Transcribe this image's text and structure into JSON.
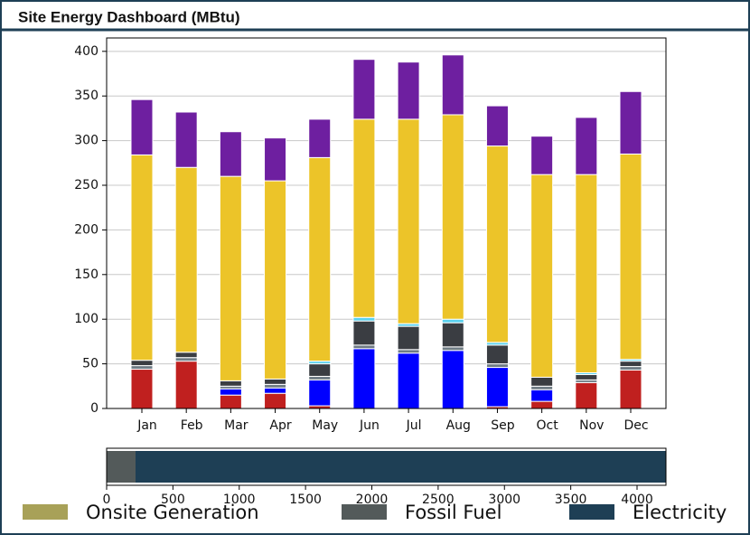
{
  "header": {
    "title": "Site Energy Dashboard (MBtu)"
  },
  "chart_data": [
    {
      "type": "bar",
      "stacked": true,
      "categories": [
        "Jan",
        "Feb",
        "Mar",
        "Apr",
        "May",
        "Jun",
        "Jul",
        "Aug",
        "Sep",
        "Oct",
        "Nov",
        "Dec"
      ],
      "series": [
        {
          "color": "#c0201f",
          "values": [
            44,
            53,
            15,
            17,
            3,
            0,
            0,
            0,
            2,
            8,
            29,
            43
          ]
        },
        {
          "color": "#0000ff",
          "values": [
            0,
            0,
            7,
            6,
            29,
            67,
            62,
            65,
            44,
            13,
            0,
            0
          ]
        },
        {
          "color": "#6f7c85",
          "values": [
            4,
            4,
            3,
            4,
            4,
            4,
            4,
            4,
            4,
            4,
            3,
            4
          ]
        },
        {
          "color": "#3a3d42",
          "values": [
            6,
            6,
            6,
            6,
            14,
            27,
            26,
            27,
            21,
            10,
            6,
            6
          ]
        },
        {
          "color": "#5ad1ef",
          "values": [
            0,
            0,
            0,
            0,
            3,
            4,
            3,
            4,
            3,
            0,
            2,
            2
          ]
        },
        {
          "color": "#ecc429",
          "values": [
            230,
            207,
            229,
            222,
            228,
            222,
            229,
            229,
            220,
            227,
            222,
            230
          ]
        },
        {
          "color": "#6e1fa0",
          "values": [
            62,
            62,
            50,
            48,
            43,
            67,
            64,
            67,
            45,
            43,
            64,
            70
          ]
        }
      ],
      "ylim": [
        0,
        415
      ],
      "yticks": [
        0,
        50,
        100,
        150,
        200,
        250,
        300,
        350,
        400
      ],
      "grid": true
    },
    {
      "type": "barh",
      "stacked": true,
      "series": [
        {
          "name": "Onsite Generation",
          "color": "#a8a158",
          "values": [
            0
          ]
        },
        {
          "name": "Fossil Fuel",
          "color": "#535a5a",
          "values": [
            218
          ]
        },
        {
          "name": "Electricity",
          "color": "#1e3f55",
          "values": [
            4000
          ]
        }
      ],
      "xlim": [
        0,
        4218
      ],
      "xticks": [
        0,
        500,
        1000,
        1500,
        2000,
        2500,
        3000,
        3500,
        4000
      ],
      "legend": "bottom"
    }
  ]
}
